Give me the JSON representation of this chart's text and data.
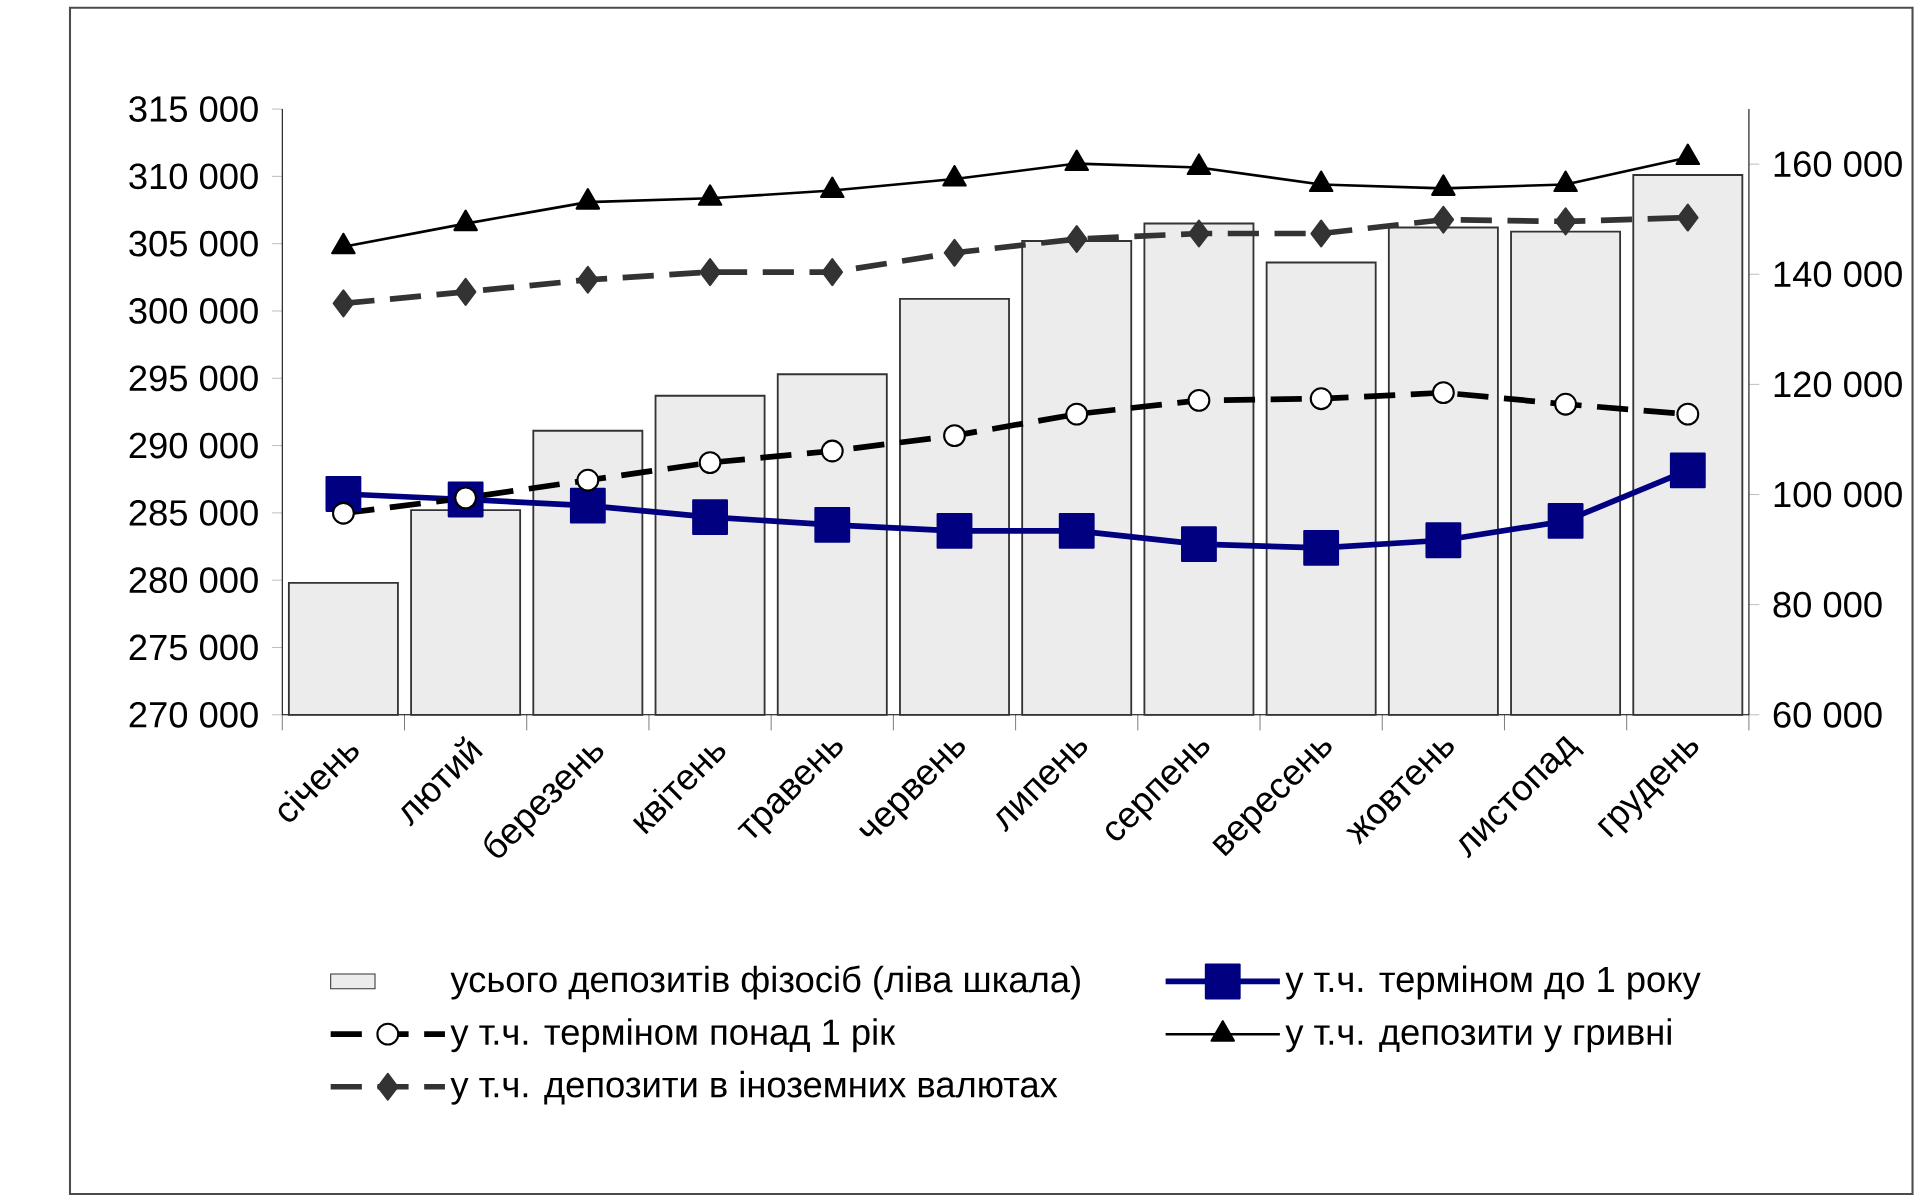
{
  "chart_data": {
    "type": "bar",
    "categories": [
      "січень",
      "лютий",
      "березень",
      "квітень",
      "травень",
      "червень",
      "липень",
      "серпень",
      "вересень",
      "жовтень",
      "листопад",
      "грудень"
    ],
    "series": [
      {
        "name": "усього депозитів фізосіб (ліва шкала)",
        "color": "#ececec",
        "values": [
          279800,
          285200,
          291100,
          293700,
          295300,
          300900,
          305200,
          306500,
          303600,
          306200,
          305900,
          310100
        ]
      },
      {
        "name": "у т.ч. терміном до 1 року",
        "type": "line",
        "axis": "y2",
        "color": "#000080",
        "marker": "square",
        "line_style": "solid",
        "values": [
          100100,
          99100,
          98000,
          95900,
          94500,
          93400,
          93400,
          91000,
          90300,
          91700,
          95200,
          104400
        ]
      },
      {
        "name": "у т.ч. терміном понад 1 рік",
        "type": "line",
        "axis": "y2",
        "color": "#000000",
        "marker": "circle",
        "line_style": "dashed",
        "values": [
          96600,
          99400,
          102600,
          105800,
          107900,
          110700,
          114600,
          117100,
          117400,
          118500,
          116400,
          114600
        ]
      },
      {
        "name": "у т.ч. депозити у гривні",
        "type": "line",
        "axis": "y2",
        "color": "#000000",
        "marker": "triangle",
        "line_style": "solid",
        "values": [
          145000,
          149200,
          153100,
          153800,
          155200,
          157300,
          160100,
          159400,
          156300,
          155600,
          156300,
          161200
        ]
      },
      {
        "name": "у т.ч. депозити в іноземних валютах",
        "type": "line",
        "axis": "y2",
        "color": "#333333",
        "marker": "diamond",
        "line_style": "dashed",
        "values": [
          134700,
          136800,
          139000,
          140400,
          140400,
          143900,
          146400,
          147400,
          147400,
          149900,
          149600,
          150300
        ]
      }
    ],
    "ylim": [
      270000,
      315000
    ],
    "yticks": [
      {
        "value": 270000,
        "label": "270 000"
      },
      {
        "value": 275000,
        "label": "275 000"
      },
      {
        "value": 280000,
        "label": "280 000"
      },
      {
        "value": 285000,
        "label": "285 000"
      },
      {
        "value": 290000,
        "label": "290 000"
      },
      {
        "value": 295000,
        "label": "295 000"
      },
      {
        "value": 300000,
        "label": "300 000"
      },
      {
        "value": 305000,
        "label": "305 000"
      },
      {
        "value": 310000,
        "label": "310 000"
      },
      {
        "value": 315000,
        "label": "315 000"
      }
    ],
    "y2lim": [
      60000,
      170000
    ],
    "y2ticks": [
      {
        "value": 60000,
        "label": "60 000"
      },
      {
        "value": 80000,
        "label": "80 000"
      },
      {
        "value": 100000,
        "label": "100 000"
      },
      {
        "value": 120000,
        "label": "120 000"
      },
      {
        "value": 140000,
        "label": "140 000"
      },
      {
        "value": 160000,
        "label": "160 000"
      }
    ],
    "grid": false,
    "legend": "bottom"
  }
}
